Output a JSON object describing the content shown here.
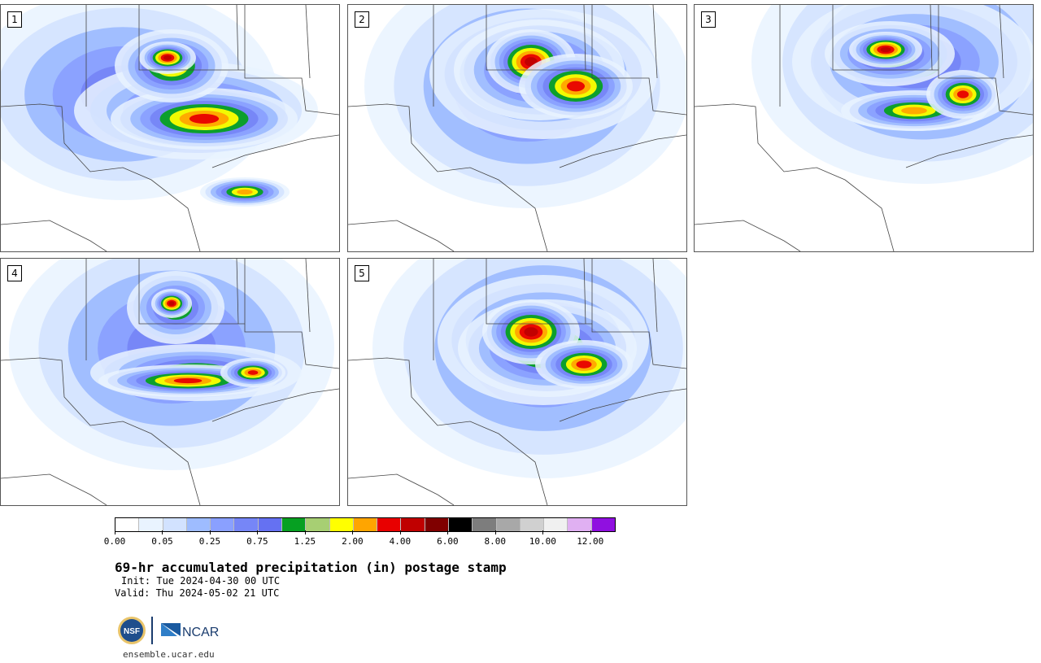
{
  "panels": [
    {
      "label": "1"
    },
    {
      "label": "2"
    },
    {
      "label": "3"
    },
    {
      "label": "4"
    },
    {
      "label": "5"
    }
  ],
  "colorbar": {
    "colors": [
      "#ffffff",
      "#e9f3ff",
      "#d2e2ff",
      "#9ebcff",
      "#8aa0ff",
      "#7686f7",
      "#6571f2",
      "#06a022",
      "#a7cf73",
      "#ffff00",
      "#ffa500",
      "#e80000",
      "#c00000",
      "#800000",
      "#000000",
      "#7d7d7d",
      "#a8a8a8",
      "#d0d0d0",
      "#f0f0f0",
      "#e0b0f2",
      "#9010e0"
    ],
    "labels": [
      "0.00",
      "0.05",
      "0.25",
      "0.75",
      "1.25",
      "2.00",
      "4.00",
      "6.00",
      "8.00",
      "10.00",
      "12.00"
    ]
  },
  "title": "69-hr accumulated precipitation (in) postage stamp",
  "init": "Init: Tue 2024-04-30 00 UTC",
  "valid": "Valid: Thu 2024-05-02 21 UTC",
  "logos": {
    "nsf": "NSF",
    "ncar": "NCAR"
  },
  "site": "ensemble.ucar.edu"
}
